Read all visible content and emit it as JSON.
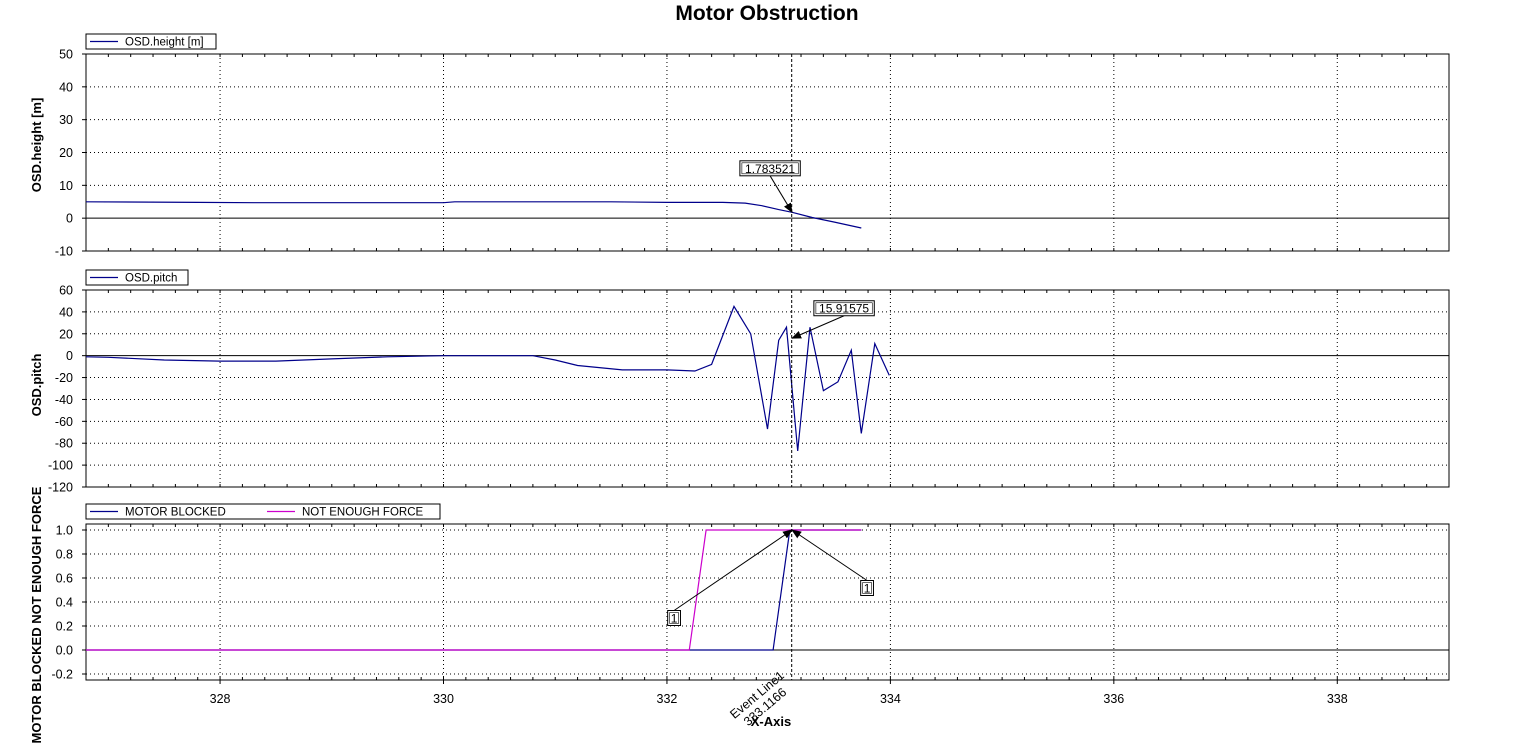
{
  "chart_data": {
    "type": "line",
    "title": "Motor Obstruction",
    "xlabel": "X-Axis",
    "xlim": [
      326.8,
      339.0
    ],
    "x_ticks": [
      328,
      330,
      332,
      334,
      336,
      338
    ],
    "event_line": {
      "x": 333.1166,
      "label": "Event Line1",
      "value_label": "333.1166"
    },
    "subplots": [
      {
        "ylabel": "OSD.height [m]",
        "ylim": [
          -10,
          50
        ],
        "y_ticks": [
          -10,
          0,
          10,
          20,
          30,
          40,
          50
        ],
        "legend": [
          "OSD.height [m]"
        ],
        "series": [
          {
            "name": "OSD.height [m]",
            "color": "#00008b",
            "x": [
              326.8,
              327.8,
              328.3,
              329.0,
              330.0,
              330.1,
              330.5,
              331.0,
              331.5,
              332.0,
              332.5,
              332.7,
              332.85,
              333.0,
              333.12,
              333.3,
              333.5,
              333.74
            ],
            "y": [
              5.0,
              4.8,
              4.7,
              4.7,
              4.7,
              5.0,
              5.0,
              5.0,
              5.0,
              4.8,
              4.8,
              4.6,
              3.8,
              2.6,
              1.78,
              0.2,
              -1.2,
              -3.0
            ]
          }
        ],
        "annotations": [
          {
            "text": "1.783521",
            "x": 333.12,
            "y": 1.783521
          }
        ]
      },
      {
        "ylabel": "OSD.pitch",
        "ylim": [
          -120,
          60
        ],
        "y_ticks": [
          -120,
          -100,
          -80,
          -60,
          -40,
          -20,
          0,
          20,
          40,
          60
        ],
        "legend": [
          "OSD.pitch"
        ],
        "series": [
          {
            "name": "OSD.pitch",
            "color": "#00008b",
            "x": [
              326.8,
              327.0,
              327.5,
              328.0,
              328.5,
              329.0,
              329.5,
              330.0,
              330.1,
              330.8,
              331.0,
              331.2,
              331.6,
              332.0,
              332.25,
              332.4,
              332.6,
              332.75,
              332.9,
              333.0,
              333.07,
              333.17,
              333.28,
              333.4,
              333.53,
              333.65,
              333.74,
              333.86,
              333.99
            ],
            "y": [
              -1,
              -1.5,
              -4,
              -5,
              -5,
              -3,
              -1,
              0,
              0,
              0,
              -4,
              -9,
              -13,
              -13,
              -14,
              -8,
              45,
              20,
              -67,
              14,
              26,
              -87,
              26,
              -32,
              -24,
              5,
              -71,
              11,
              -18
            ]
          }
        ],
        "annotations": [
          {
            "text": "15.91575",
            "x": 333.12,
            "y": 15.91575
          }
        ]
      },
      {
        "ylabel": "MOTOR BLOCKED NOT ENOUGH FORCE",
        "ylim": [
          -0.25,
          1.05
        ],
        "y_ticks": [
          -0.2,
          0.0,
          0.2,
          0.4,
          0.6,
          0.8,
          1.0
        ],
        "legend": [
          "MOTOR BLOCKED",
          "NOT ENOUGH FORCE"
        ],
        "series": [
          {
            "name": "MOTOR BLOCKED",
            "color": "#00008b",
            "x": [
              326.8,
              332.95,
              333.1,
              333.74
            ],
            "y": [
              0,
              0,
              1,
              1
            ]
          },
          {
            "name": "NOT ENOUGH FORCE",
            "color": "#cc00cc",
            "x": [
              326.8,
              332.2,
              332.35,
              333.74
            ],
            "y": [
              0,
              0,
              1,
              1
            ]
          }
        ],
        "annotations": [
          {
            "text": "1",
            "x": 333.12,
            "y": 1
          },
          {
            "text": "1",
            "x": 333.12,
            "y": 1
          }
        ]
      }
    ]
  }
}
